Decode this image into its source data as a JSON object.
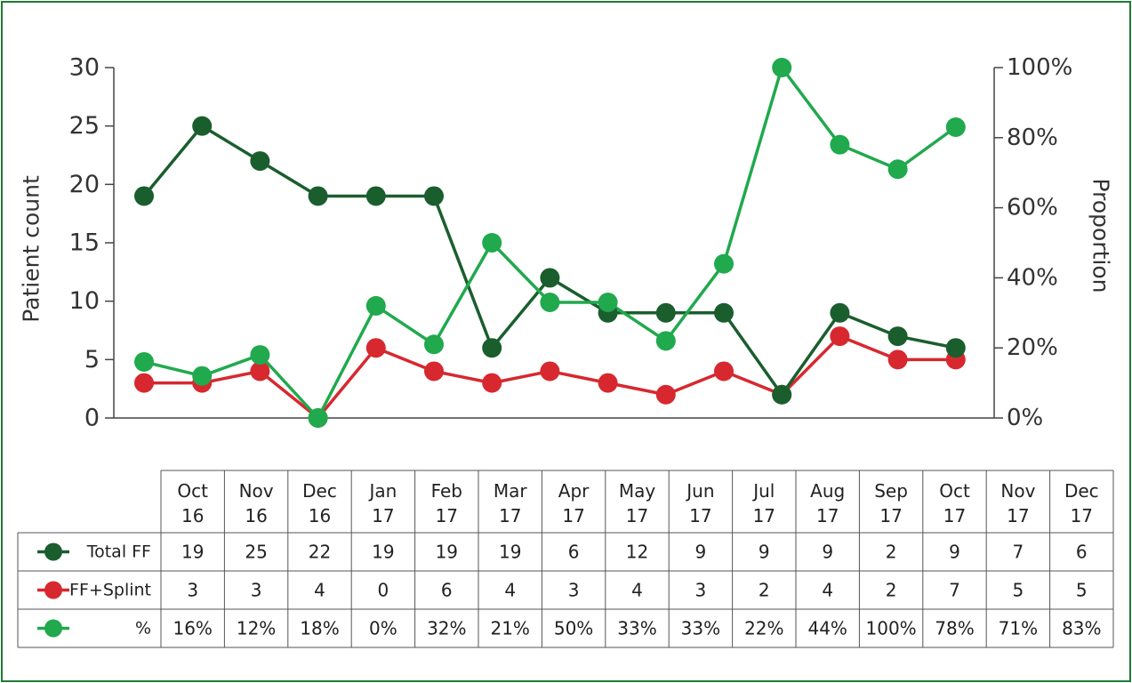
{
  "chart_data": {
    "type": "line",
    "categories": [
      "Oct 16",
      "Nov 16",
      "Dec 16",
      "Jan 17",
      "Feb 17",
      "Mar 17",
      "Apr 17",
      "May 17",
      "Jun 17",
      "Jul 17",
      "Aug 17",
      "Sep 17",
      "Oct 17",
      "Nov 17",
      "Dec 17"
    ],
    "category_labels": [
      [
        "Oct",
        "16"
      ],
      [
        "Nov",
        "16"
      ],
      [
        "Dec",
        "16"
      ],
      [
        "Jan",
        "17"
      ],
      [
        "Feb",
        "17"
      ],
      [
        "Mar",
        "17"
      ],
      [
        "Apr",
        "17"
      ],
      [
        "May",
        "17"
      ],
      [
        "Jun",
        "17"
      ],
      [
        "Jul",
        "17"
      ],
      [
        "Aug",
        "17"
      ],
      [
        "Sep",
        "17"
      ],
      [
        "Oct",
        "17"
      ],
      [
        "Nov",
        "17"
      ],
      [
        "Dec",
        "17"
      ]
    ],
    "title": "",
    "ylabel_left": "Patient count",
    "ylabel_right": "Proportion",
    "ylim_left": [
      0,
      30
    ],
    "ylim_right": [
      0,
      100
    ],
    "yticks_left": [
      "0",
      "5",
      "10",
      "15",
      "20",
      "25",
      "30"
    ],
    "yticks_right": [
      "0%",
      "20%",
      "40%",
      "60%",
      "80%",
      "100%"
    ],
    "series": [
      {
        "name": "Total FF",
        "axis": "left",
        "color": "#1a5e2e",
        "values": [
          19,
          25,
          22,
          19,
          19,
          19,
          6,
          12,
          9,
          9,
          9,
          2,
          9,
          7,
          6
        ]
      },
      {
        "name": "FF+Splint",
        "axis": "left",
        "color": "#d7282f",
        "values": [
          3,
          3,
          4,
          0,
          6,
          4,
          3,
          4,
          3,
          2,
          4,
          2,
          7,
          5,
          5
        ]
      },
      {
        "name": "%",
        "axis": "right",
        "color": "#20a94d",
        "values": [
          16,
          12,
          18,
          0,
          32,
          21,
          50,
          33,
          33,
          22,
          44,
          100,
          78,
          71,
          83
        ]
      }
    ],
    "table": {
      "rows": [
        {
          "label": "Total FF",
          "cells": [
            "19",
            "25",
            "22",
            "19",
            "19",
            "19",
            "6",
            "12",
            "9",
            "9",
            "9",
            "2",
            "9",
            "7",
            "6"
          ]
        },
        {
          "label": "FF+Splint",
          "cells": [
            "3",
            "3",
            "4",
            "0",
            "6",
            "4",
            "3",
            "4",
            "3",
            "2",
            "4",
            "2",
            "7",
            "5",
            "5"
          ]
        },
        {
          "label": "%",
          "cells": [
            "16%",
            "12%",
            "18%",
            "0%",
            "32%",
            "21%",
            "50%",
            "33%",
            "33%",
            "22%",
            "44%",
            "100%",
            "78%",
            "71%",
            "83%"
          ]
        }
      ]
    },
    "grid": false,
    "legend": "table-left"
  }
}
